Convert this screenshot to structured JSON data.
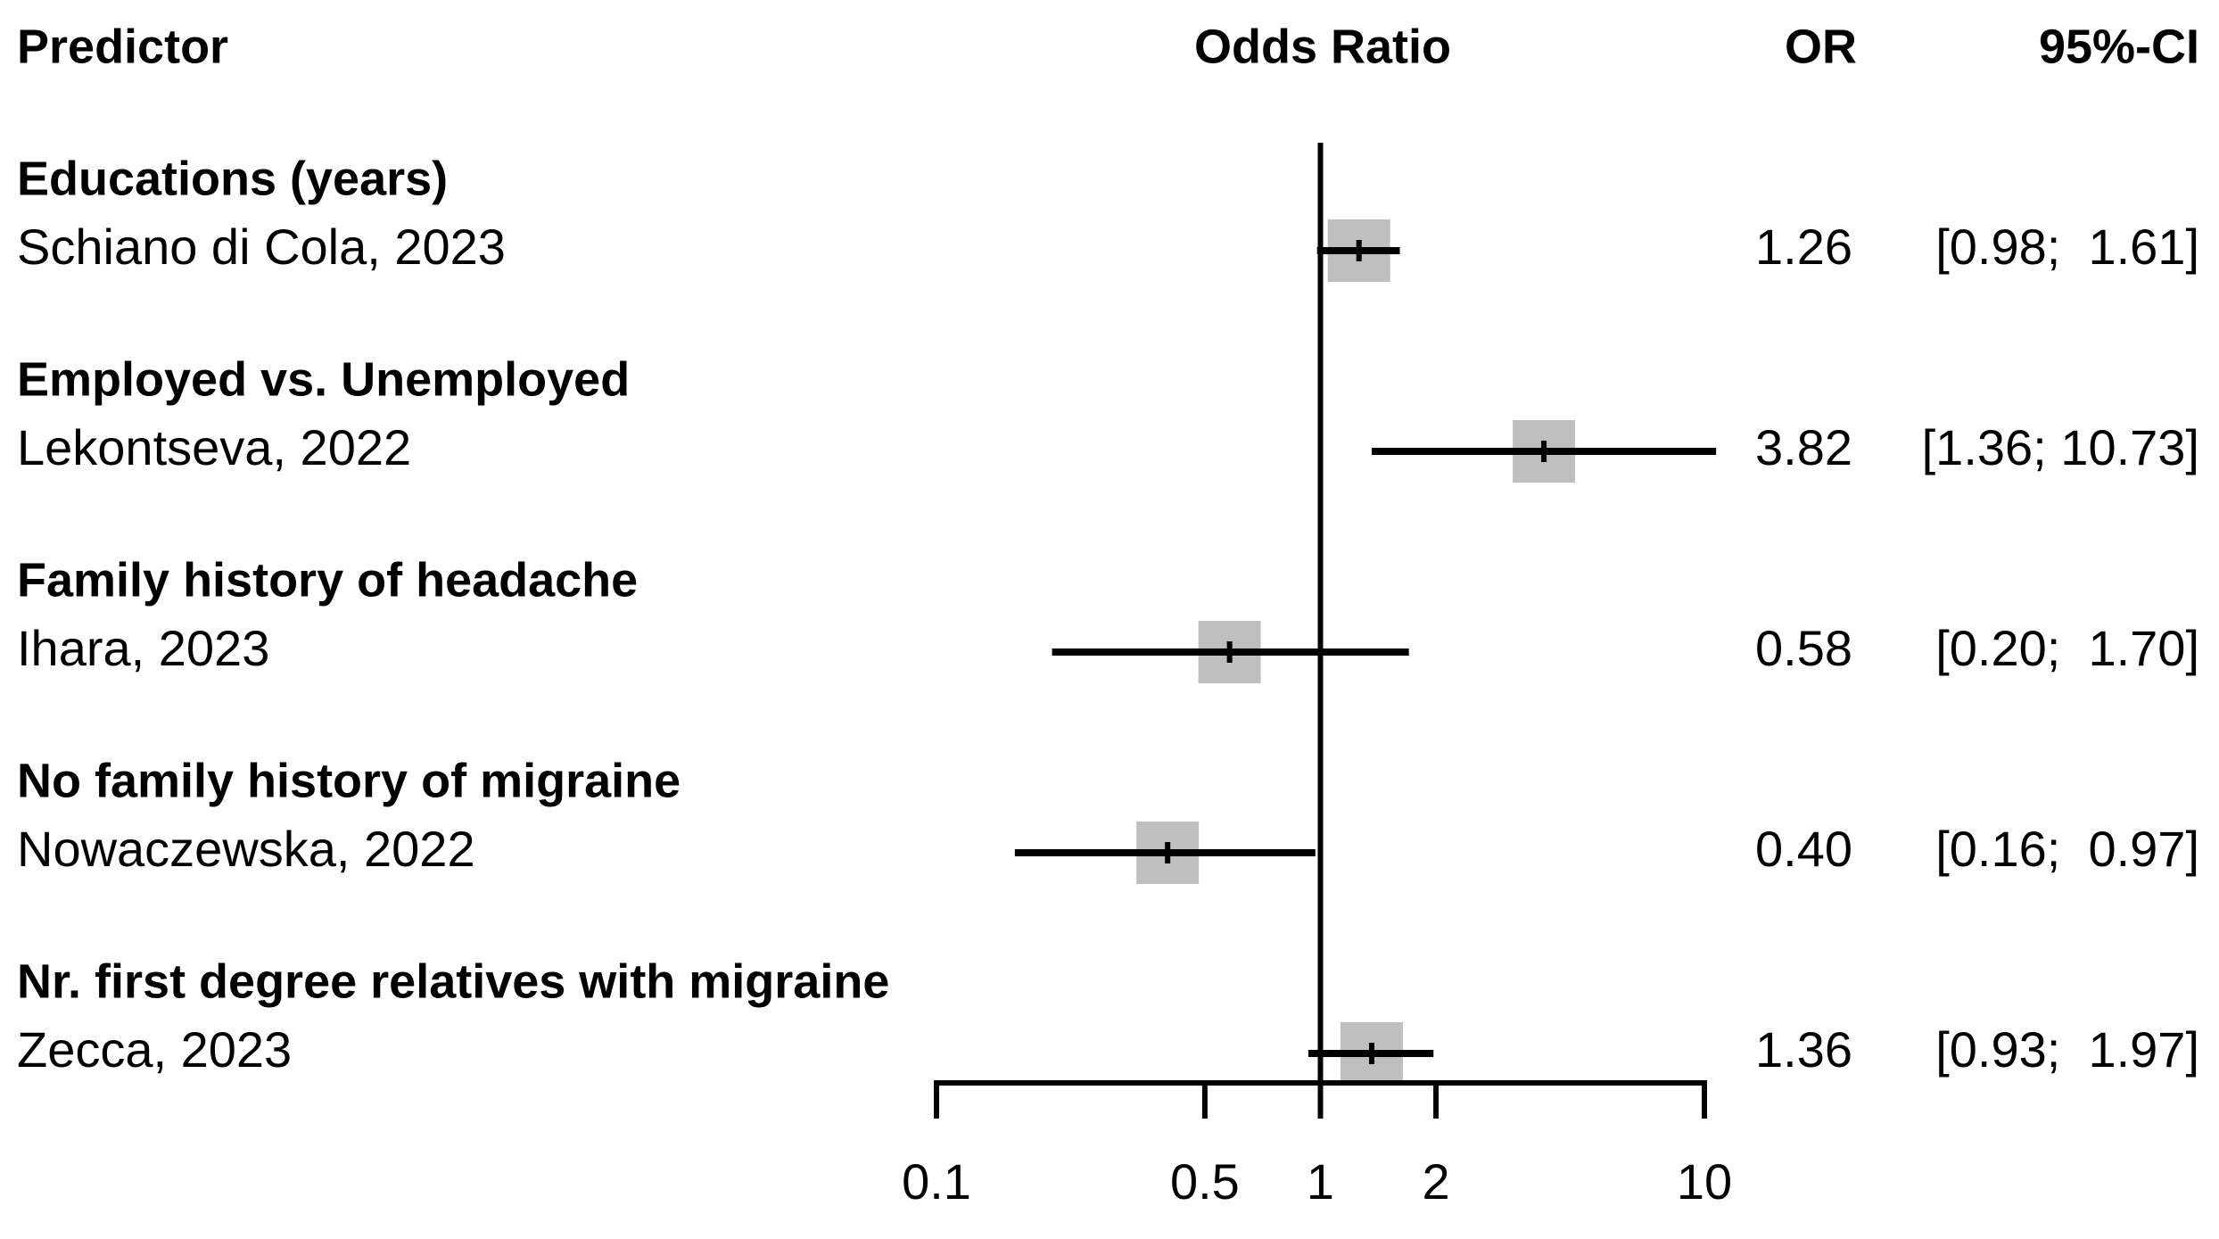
{
  "chart_data": {
    "type": "forest",
    "headers": [
      "Predictor",
      "Odds Ratio",
      "OR",
      "95%-CI"
    ],
    "groups": [
      "Educations (years)",
      "Employed vs. Unemployed",
      "Family history of headache",
      "No family history of migraine",
      "Nr. first degree relatives with migraine"
    ],
    "categories": [
      "Schiano di Cola, 2023",
      "Lekontseva, 2022",
      "Ihara, 2023",
      "Nowaczewska, 2022",
      "Zecca, 2023"
    ],
    "values": [
      1.26,
      3.82,
      0.58,
      0.4,
      1.36
    ],
    "value_labels": [
      "1.26",
      "3.82",
      "0.58",
      "0.40",
      "1.36"
    ],
    "lower": [
      0.98,
      1.36,
      0.2,
      0.16,
      0.93
    ],
    "upper": [
      1.61,
      10.73,
      1.7,
      0.97,
      1.97
    ],
    "ci_labels": [
      "[0.98;  1.61]",
      "[1.36; 10.73]",
      "[0.20;  1.70]",
      "[0.16;  0.97]",
      "[0.93;  1.97]"
    ],
    "reference": 1,
    "log_scale": true,
    "xlim": [
      0.1,
      10
    ],
    "xticks": [
      0.1,
      0.5,
      1,
      2,
      10
    ],
    "box_color": "#bfbfbf",
    "line_color": "#000000"
  }
}
